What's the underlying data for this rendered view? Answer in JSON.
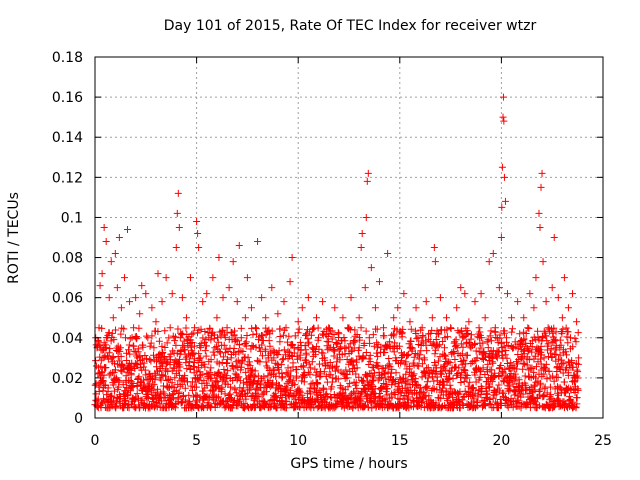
{
  "chart_data": {
    "type": "scatter",
    "title": "Day 101 of 2015, Rate Of TEC Index for receiver wtzr",
    "xlabel": "GPS time / hours",
    "ylabel": "ROTI / TECUs",
    "xlim": [
      0,
      25
    ],
    "ylim": [
      0,
      0.18
    ],
    "xticks": [
      0,
      5,
      10,
      15,
      20,
      25
    ],
    "xtick_labels": [
      "0",
      "5",
      "10",
      "15",
      "20",
      "25"
    ],
    "yticks": [
      0,
      0.02,
      0.04,
      0.06,
      0.08,
      0.1,
      0.12,
      0.14,
      0.16,
      0.18
    ],
    "ytick_labels": [
      "0",
      "0.02",
      "0.04",
      "0.06",
      "0.08",
      "0.1",
      "0.12",
      "0.14",
      "0.16",
      "0.18"
    ],
    "grid": true,
    "marker": "+",
    "marker_color": "#ff0000",
    "series": [
      {
        "name": "ROTI",
        "points": [
          [
            0.05,
            0.012
          ],
          [
            0.1,
            0.035
          ],
          [
            0.15,
            0.022
          ],
          [
            0.2,
            0.045
          ],
          [
            0.25,
            0.066
          ],
          [
            0.3,
            0.018
          ],
          [
            0.35,
            0.072
          ],
          [
            0.4,
            0.03
          ],
          [
            0.45,
            0.095
          ],
          [
            0.5,
            0.025
          ],
          [
            0.55,
            0.088
          ],
          [
            0.6,
            0.04
          ],
          [
            0.65,
            0.015
          ],
          [
            0.7,
            0.06
          ],
          [
            0.8,
            0.078
          ],
          [
            0.85,
            0.028
          ],
          [
            0.9,
            0.05
          ],
          [
            1.0,
            0.082
          ],
          [
            1.05,
            0.02
          ],
          [
            1.1,
            0.065
          ],
          [
            1.2,
            0.09
          ],
          [
            1.25,
            0.035
          ],
          [
            1.3,
            0.055
          ],
          [
            1.4,
            0.012
          ],
          [
            1.45,
            0.07
          ],
          [
            1.5,
            0.04
          ],
          [
            1.6,
            0.094
          ],
          [
            1.65,
            0.025
          ],
          [
            1.7,
            0.058
          ],
          [
            1.8,
            0.018
          ],
          [
            1.9,
            0.045
          ],
          [
            2.0,
            0.06
          ],
          [
            2.1,
            0.03
          ],
          [
            2.2,
            0.052
          ],
          [
            2.3,
            0.066
          ],
          [
            2.4,
            0.015
          ],
          [
            2.5,
            0.062
          ],
          [
            2.6,
            0.04
          ],
          [
            2.7,
            0.022
          ],
          [
            2.8,
            0.055
          ],
          [
            2.9,
            0.035
          ],
          [
            3.0,
            0.048
          ],
          [
            3.1,
            0.072
          ],
          [
            3.2,
            0.02
          ],
          [
            3.3,
            0.058
          ],
          [
            3.4,
            0.03
          ],
          [
            3.5,
            0.07
          ],
          [
            3.6,
            0.015
          ],
          [
            3.7,
            0.045
          ],
          [
            3.8,
            0.062
          ],
          [
            3.9,
            0.025
          ],
          [
            4.0,
            0.085
          ],
          [
            4.05,
            0.102
          ],
          [
            4.1,
            0.112
          ],
          [
            4.15,
            0.095
          ],
          [
            4.2,
            0.04
          ],
          [
            4.3,
            0.06
          ],
          [
            4.4,
            0.02
          ],
          [
            4.5,
            0.05
          ],
          [
            4.6,
            0.032
          ],
          [
            4.7,
            0.07
          ],
          [
            4.8,
            0.018
          ],
          [
            4.9,
            0.045
          ],
          [
            5.0,
            0.098
          ],
          [
            5.05,
            0.092
          ],
          [
            5.1,
            0.085
          ],
          [
            5.2,
            0.03
          ],
          [
            5.3,
            0.058
          ],
          [
            5.4,
            0.015
          ],
          [
            5.5,
            0.062
          ],
          [
            5.6,
            0.04
          ],
          [
            5.7,
            0.025
          ],
          [
            5.8,
            0.07
          ],
          [
            5.9,
            0.035
          ],
          [
            6.0,
            0.05
          ],
          [
            6.1,
            0.08
          ],
          [
            6.2,
            0.02
          ],
          [
            6.3,
            0.06
          ],
          [
            6.4,
            0.012
          ],
          [
            6.5,
            0.045
          ],
          [
            6.6,
            0.065
          ],
          [
            6.7,
            0.03
          ],
          [
            6.8,
            0.078
          ],
          [
            6.9,
            0.022
          ],
          [
            7.0,
            0.058
          ],
          [
            7.1,
            0.086
          ],
          [
            7.2,
            0.04
          ],
          [
            7.3,
            0.015
          ],
          [
            7.4,
            0.05
          ],
          [
            7.5,
            0.07
          ],
          [
            7.6,
            0.028
          ],
          [
            7.7,
            0.055
          ],
          [
            7.8,
            0.018
          ],
          [
            7.9,
            0.045
          ],
          [
            8.0,
            0.088
          ],
          [
            8.1,
            0.035
          ],
          [
            8.2,
            0.06
          ],
          [
            8.3,
            0.012
          ],
          [
            8.4,
            0.05
          ],
          [
            8.5,
            0.025
          ],
          [
            8.6,
            0.042
          ],
          [
            8.7,
            0.065
          ],
          [
            8.8,
            0.03
          ],
          [
            8.9,
            0.015
          ],
          [
            9.0,
            0.052
          ],
          [
            9.1,
            0.038
          ],
          [
            9.2,
            0.02
          ],
          [
            9.3,
            0.058
          ],
          [
            9.4,
            0.045
          ],
          [
            9.5,
            0.025
          ],
          [
            9.6,
            0.068
          ],
          [
            9.7,
            0.08
          ],
          [
            9.8,
            0.035
          ],
          [
            9.9,
            0.012
          ],
          [
            10.0,
            0.048
          ],
          [
            10.1,
            0.03
          ],
          [
            10.2,
            0.055
          ],
          [
            10.3,
            0.018
          ],
          [
            10.4,
            0.042
          ],
          [
            10.5,
            0.06
          ],
          [
            10.6,
            0.025
          ],
          [
            10.7,
            0.035
          ],
          [
            10.8,
            0.015
          ],
          [
            10.9,
            0.05
          ],
          [
            11.0,
            0.04
          ],
          [
            11.1,
            0.022
          ],
          [
            11.2,
            0.058
          ],
          [
            11.3,
            0.03
          ],
          [
            11.4,
            0.012
          ],
          [
            11.5,
            0.045
          ],
          [
            11.6,
            0.035
          ],
          [
            11.7,
            0.02
          ],
          [
            11.8,
            0.055
          ],
          [
            11.9,
            0.028
          ],
          [
            12.0,
            0.042
          ],
          [
            12.1,
            0.015
          ],
          [
            12.2,
            0.05
          ],
          [
            12.3,
            0.032
          ],
          [
            12.4,
            0.02
          ],
          [
            12.5,
            0.045
          ],
          [
            12.6,
            0.06
          ],
          [
            12.7,
            0.008
          ],
          [
            12.8,
            0.038
          ],
          [
            12.9,
            0.025
          ],
          [
            13.0,
            0.05
          ],
          [
            13.1,
            0.085
          ],
          [
            13.15,
            0.092
          ],
          [
            13.2,
            0.03
          ],
          [
            13.3,
            0.065
          ],
          [
            13.35,
            0.1
          ],
          [
            13.4,
            0.118
          ],
          [
            13.45,
            0.122
          ],
          [
            13.5,
            0.04
          ],
          [
            13.6,
            0.075
          ],
          [
            13.7,
            0.02
          ],
          [
            13.8,
            0.055
          ],
          [
            13.9,
            0.035
          ],
          [
            14.0,
            0.068
          ],
          [
            14.1,
            0.015
          ],
          [
            14.2,
            0.045
          ],
          [
            14.3,
            0.025
          ],
          [
            14.4,
            0.082
          ],
          [
            14.5,
            0.038
          ],
          [
            14.6,
            0.012
          ],
          [
            14.7,
            0.05
          ],
          [
            14.8,
            0.03
          ],
          [
            14.9,
            0.055
          ],
          [
            15.0,
            0.02
          ],
          [
            15.1,
            0.042
          ],
          [
            15.2,
            0.062
          ],
          [
            15.3,
            0.028
          ],
          [
            15.4,
            0.015
          ],
          [
            15.5,
            0.048
          ],
          [
            15.6,
            0.035
          ],
          [
            15.7,
            0.022
          ],
          [
            15.8,
            0.055
          ],
          [
            15.9,
            0.04
          ],
          [
            16.0,
            0.012
          ],
          [
            16.1,
            0.045
          ],
          [
            16.2,
            0.03
          ],
          [
            16.3,
            0.058
          ],
          [
            16.4,
            0.02
          ],
          [
            16.5,
            0.038
          ],
          [
            16.6,
            0.05
          ],
          [
            16.7,
            0.085
          ],
          [
            16.75,
            0.078
          ],
          [
            16.8,
            0.025
          ],
          [
            16.9,
            0.042
          ],
          [
            17.0,
            0.06
          ],
          [
            17.1,
            0.018
          ],
          [
            17.2,
            0.035
          ],
          [
            17.3,
            0.05
          ],
          [
            17.4,
            0.028
          ],
          [
            17.5,
            0.045
          ],
          [
            17.6,
            0.012
          ],
          [
            17.7,
            0.038
          ],
          [
            17.8,
            0.055
          ],
          [
            17.9,
            0.025
          ],
          [
            18.0,
            0.065
          ],
          [
            18.1,
            0.04
          ],
          [
            18.2,
            0.062
          ],
          [
            18.3,
            0.02
          ],
          [
            18.4,
            0.048
          ],
          [
            18.5,
            0.035
          ],
          [
            18.6,
            0.015
          ],
          [
            18.7,
            0.058
          ],
          [
            18.8,
            0.03
          ],
          [
            18.9,
            0.045
          ],
          [
            19.0,
            0.062
          ],
          [
            19.1,
            0.025
          ],
          [
            19.2,
            0.05
          ],
          [
            19.3,
            0.038
          ],
          [
            19.4,
            0.078
          ],
          [
            19.5,
            0.02
          ],
          [
            19.6,
            0.082
          ],
          [
            19.7,
            0.045
          ],
          [
            19.8,
            0.03
          ],
          [
            19.9,
            0.065
          ],
          [
            20.0,
            0.09
          ],
          [
            20.02,
            0.105
          ],
          [
            20.05,
            0.125
          ],
          [
            20.08,
            0.15
          ],
          [
            20.1,
            0.16
          ],
          [
            20.12,
            0.148
          ],
          [
            20.15,
            0.12
          ],
          [
            20.2,
            0.108
          ],
          [
            20.25,
            0.04
          ],
          [
            20.3,
            0.062
          ],
          [
            20.4,
            0.025
          ],
          [
            20.5,
            0.05
          ],
          [
            20.6,
            0.035
          ],
          [
            20.7,
            0.02
          ],
          [
            20.8,
            0.058
          ],
          [
            20.9,
            0.042
          ],
          [
            21.0,
            0.03
          ],
          [
            21.1,
            0.05
          ],
          [
            21.2,
            0.015
          ],
          [
            21.3,
            0.045
          ],
          [
            21.4,
            0.062
          ],
          [
            21.5,
            0.025
          ],
          [
            21.6,
            0.055
          ],
          [
            21.7,
            0.07
          ],
          [
            21.8,
            0.04
          ],
          [
            21.85,
            0.102
          ],
          [
            21.9,
            0.095
          ],
          [
            21.95,
            0.115
          ],
          [
            22.0,
            0.122
          ],
          [
            22.05,
            0.078
          ],
          [
            22.1,
            0.03
          ],
          [
            22.2,
            0.058
          ],
          [
            22.3,
            0.045
          ],
          [
            22.4,
            0.02
          ],
          [
            22.5,
            0.065
          ],
          [
            22.6,
            0.09
          ],
          [
            22.7,
            0.035
          ],
          [
            22.8,
            0.06
          ],
          [
            22.9,
            0.015
          ],
          [
            23.0,
            0.05
          ],
          [
            23.1,
            0.07
          ],
          [
            23.2,
            0.025
          ],
          [
            23.3,
            0.055
          ],
          [
            23.4,
            0.04
          ],
          [
            23.5,
            0.062
          ],
          [
            23.6,
            0.02
          ],
          [
            23.7,
            0.048
          ],
          [
            23.8,
            0.03
          ]
        ]
      }
    ],
    "noise_band": {
      "x_range": [
        0,
        23.8
      ],
      "typical_y_range": [
        0.005,
        0.045
      ],
      "description": "dense cloud of points"
    }
  }
}
